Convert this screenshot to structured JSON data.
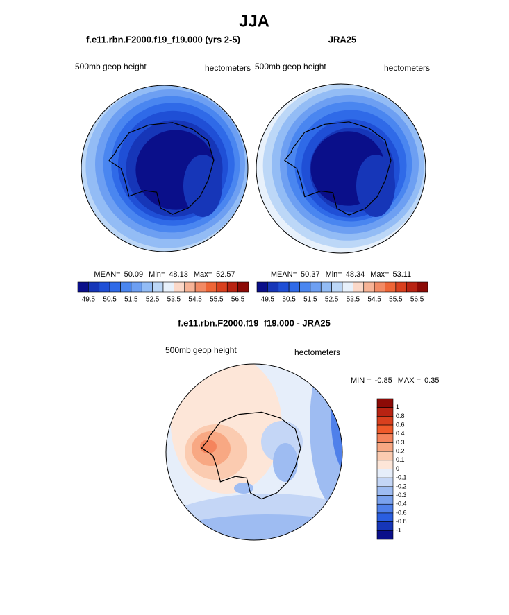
{
  "title": "JJA",
  "panels": [
    {
      "case": "f.e11.rbn.F2000.f19_f19.000 (yrs 2-5)",
      "field": "500mb geop height",
      "units": "hectometers",
      "stats": [
        {
          "label": "MEAN=",
          "value": 50.09
        },
        {
          "label": "Min=",
          "value": 48.13
        },
        {
          "label": "Max=",
          "value": 52.57
        }
      ]
    },
    {
      "case": "JRA25",
      "field": "500mb geop height",
      "units": "hectometers",
      "stats": [
        {
          "label": "MEAN=",
          "value": 50.37
        },
        {
          "label": "Min=",
          "value": 48.34
        },
        {
          "label": "Max=",
          "value": 53.11
        }
      ]
    }
  ],
  "colorbar": {
    "colors": [
      "#0a0f8a",
      "#1636b8",
      "#1f4fd6",
      "#2f6ae8",
      "#4a86f0",
      "#6d9ff2",
      "#93bcf5",
      "#bcd7f7",
      "#e8f1fb",
      "#fbd8c8",
      "#f7b396",
      "#f28a64",
      "#ee6536",
      "#d9401e",
      "#b82312",
      "#8c0a06"
    ],
    "labels": [
      49.5,
      50.5,
      51.5,
      52.5,
      53.5,
      54.5,
      55.5,
      56.5
    ]
  },
  "difference": {
    "title": "f.e11.rbn.F2000.f19_f19.000 - JRA25",
    "field": "500mb geop height",
    "units": "hectometers",
    "stats": [
      {
        "label": "MIN =",
        "value": -0.85
      },
      {
        "label": "MAX =",
        "value": 0.35
      }
    ],
    "colorbar": {
      "colors": [
        "#8c0a06",
        "#b82312",
        "#d9401e",
        "#f05a2a",
        "#f5845c",
        "#f8a883",
        "#fbcbb0",
        "#fde6d8",
        "#e6eefa",
        "#c4d6f6",
        "#9ebcf2",
        "#7aa2ee",
        "#4f80ea",
        "#2a5ee0",
        "#1636b8",
        "#0a0f8a"
      ],
      "labels": [
        1,
        0.8,
        0.6,
        0.4,
        0.3,
        0.2,
        0.1,
        0,
        -0.1,
        -0.2,
        -0.3,
        -0.4,
        -0.6,
        -0.8,
        -1
      ]
    }
  }
}
